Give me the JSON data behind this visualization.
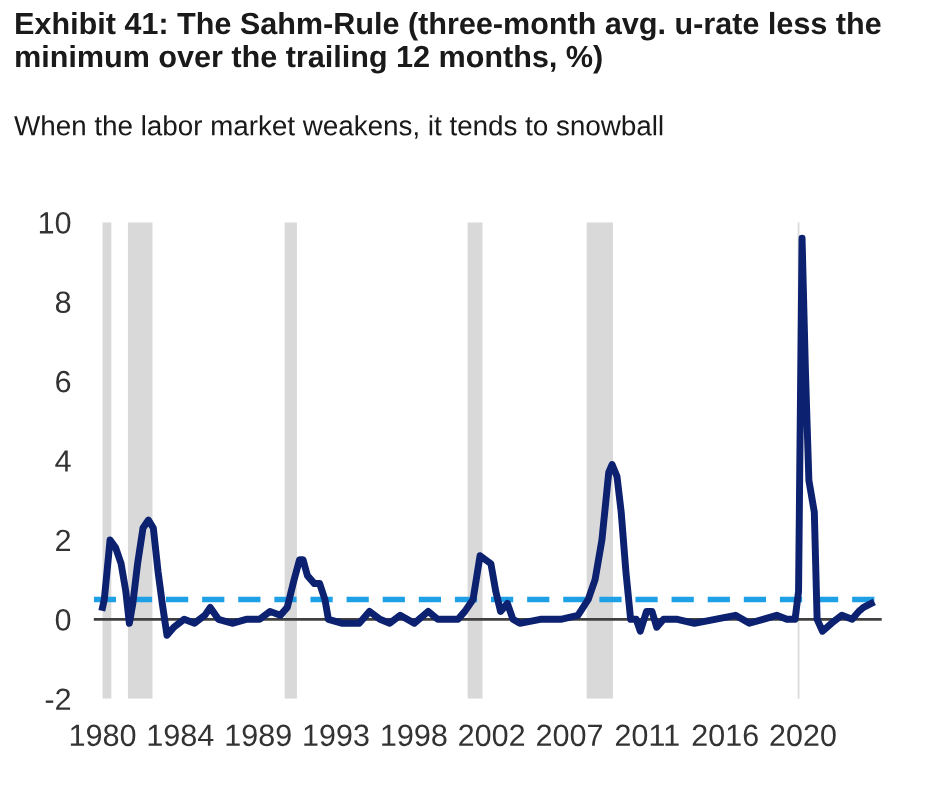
{
  "chart_data": {
    "type": "line",
    "title": "Exhibit 41: The Sahm-Rule (three-month avg. u-rate less the minimum over the trailing 12 months, %)",
    "subtitle": "When the labor market weakens, it tends to snowball",
    "series": [
      {
        "color": "#0c2170",
        "x": [
          1980.0,
          1980.1,
          1980.43,
          1980.75,
          1981.06,
          1981.33,
          1981.53,
          1981.73,
          1982.0,
          1982.31,
          1982.62,
          1982.9,
          1983.17,
          1983.41,
          1983.68,
          1984.07,
          1984.66,
          1985.25,
          1985.84,
          1986.15,
          1986.62,
          1987.4,
          1988.2,
          1988.97,
          1989.56,
          1990.15,
          1990.55,
          1990.94,
          1991.25,
          1991.45,
          1991.7,
          1992.1,
          1992.4,
          1992.7,
          1992.9,
          1993.7,
          1994.66,
          1995.25,
          1995.84,
          1996.4,
          1997.0,
          1997.8,
          1998.6,
          1999.15,
          2000.3,
          2000.69,
          2001.16,
          2001.56,
          2001.87,
          2002.18,
          2002.46,
          2002.73,
          2003.12,
          2003.44,
          2003.83,
          2005.0,
          2006.17,
          2007.15,
          2007.74,
          2008.13,
          2008.52,
          2008.91,
          2009.1,
          2009.38,
          2009.62,
          2009.89,
          2010.16,
          2010.48,
          2010.71,
          2011.07,
          2011.38,
          2011.65,
          2012.04,
          2012.83,
          2013.8,
          2014.98,
          2016.15,
          2016.94,
          2017.72,
          2018.5,
          2019.08,
          2019.55,
          2019.75,
          2019.95,
          2020.14,
          2020.34,
          2020.65,
          2020.81,
          2021.12,
          2021.63,
          2022.22,
          2022.81,
          2023.19,
          2023.46,
          2023.9
        ],
        "values": [
          0.3,
          0.5,
          2.0,
          1.8,
          1.4,
          0.7,
          -0.1,
          0.4,
          1.4,
          2.3,
          2.5,
          2.3,
          1.2,
          0.4,
          -0.4,
          -0.2,
          0.0,
          -0.1,
          0.1,
          0.3,
          0.0,
          -0.1,
          0.0,
          0.0,
          0.2,
          0.1,
          0.3,
          1.0,
          1.5,
          1.5,
          1.1,
          0.9,
          0.9,
          0.5,
          0.0,
          -0.1,
          -0.1,
          0.2,
          0.0,
          -0.1,
          0.1,
          -0.1,
          0.2,
          0.0,
          0.0,
          0.2,
          0.5,
          1.6,
          1.5,
          1.4,
          0.7,
          0.2,
          0.4,
          0.0,
          -0.1,
          0.0,
          0.0,
          0.1,
          0.5,
          1.0,
          2.0,
          3.7,
          3.9,
          3.6,
          2.7,
          1.2,
          0.0,
          0.0,
          -0.3,
          0.2,
          0.2,
          -0.2,
          0.0,
          0.0,
          -0.1,
          0.0,
          0.1,
          -0.1,
          0.0,
          0.1,
          0.0,
          0.0,
          0.7,
          9.6,
          6.3,
          3.5,
          2.7,
          0.0,
          -0.3,
          -0.1,
          0.1,
          0.0,
          0.2,
          0.3,
          0.4
        ]
      }
    ],
    "xlim": [
      1979.5,
      2024.5
    ],
    "xticks": [
      {
        "value": 1980,
        "label": "1980"
      },
      {
        "value": 1984.44,
        "label": "1984"
      },
      {
        "value": 1988.89,
        "label": "1989"
      },
      {
        "value": 1993.33,
        "label": "1993"
      },
      {
        "value": 1997.78,
        "label": "1998"
      },
      {
        "value": 2002.22,
        "label": "2002"
      },
      {
        "value": 2006.67,
        "label": "2007"
      },
      {
        "value": 2011.11,
        "label": "2011"
      },
      {
        "value": 2015.56,
        "label": "2016"
      },
      {
        "value": 2020,
        "label": "2020"
      }
    ],
    "ylim": [
      -2,
      10
    ],
    "yticks": [
      -2,
      0,
      2,
      4,
      6,
      8,
      10
    ],
    "ref_lines": [
      {
        "axis": "y",
        "value": 0,
        "color": "#404040",
        "line_style": "solid"
      },
      {
        "axis": "y",
        "value": 0.5,
        "color": "#1ea0e6",
        "line_style": "dashed"
      }
    ],
    "bands": [
      {
        "axis": "x",
        "from": 1980.0,
        "to": 1980.5,
        "color": "#d9d9d9"
      },
      {
        "axis": "x",
        "from": 1981.45,
        "to": 1982.85,
        "color": "#d9d9d9"
      },
      {
        "axis": "x",
        "from": 1990.4,
        "to": 1991.1,
        "color": "#d9d9d9"
      },
      {
        "axis": "x",
        "from": 2000.85,
        "to": 2001.7,
        "color": "#d9d9d9"
      },
      {
        "axis": "x",
        "from": 2007.65,
        "to": 2009.15,
        "color": "#d9d9d9"
      },
      {
        "axis": "x",
        "from": 2019.7,
        "to": 2019.8,
        "color": "#d9d9d9"
      }
    ],
    "grid": false,
    "legend": false
  }
}
